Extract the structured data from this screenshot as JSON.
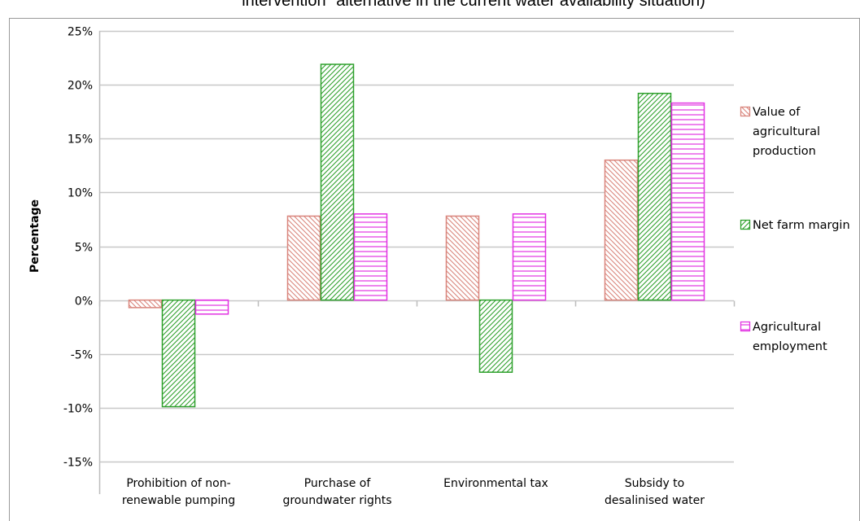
{
  "chart_data": {
    "type": "bar",
    "title": "intervention\" alternative in the current water availability situation)",
    "ylabel": "Percentage",
    "xlabel": "",
    "ylim": [
      -15,
      25
    ],
    "y_ticks": [
      25,
      20,
      15,
      10,
      5,
      0,
      -5,
      -10,
      -15
    ],
    "y_tick_labels": [
      "25%",
      "20%",
      "15%",
      "10%",
      "5%",
      "0%",
      "-5%",
      "-10%",
      "-15%"
    ],
    "categories": [
      [
        "Prohibition of non-",
        "renewable pumping"
      ],
      [
        "Purchase of",
        "groundwater rights"
      ],
      [
        "Environmental tax"
      ],
      [
        "Subsidy to",
        "desalinised water"
      ]
    ],
    "series": [
      {
        "name": [
          "Value of",
          "agricultural",
          "production"
        ],
        "values": [
          -0.7,
          7.8,
          7.8,
          13.0
        ],
        "color": "#d9857c",
        "pattern": "diag-down"
      },
      {
        "name": [
          "Net farm margin"
        ],
        "values": [
          -9.9,
          21.9,
          -6.7,
          19.2
        ],
        "color": "#2ea02c",
        "pattern": "diag-up"
      },
      {
        "name": [
          "Agricultural",
          "employment"
        ],
        "values": [
          -1.3,
          8.0,
          8.0,
          18.3
        ],
        "color": "#e233e2",
        "pattern": "horizontal"
      }
    ],
    "grid": true,
    "legend_position": "right"
  }
}
